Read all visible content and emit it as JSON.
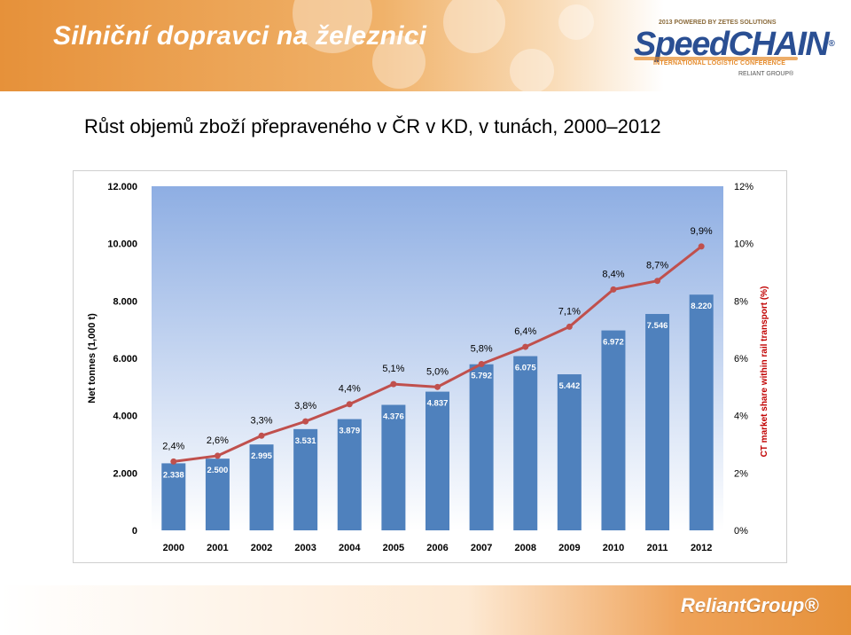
{
  "header": {
    "title": "Silniční dopravci na železnici",
    "logo_powered": "2013 POWERED BY ZETES SOLUTIONS",
    "logo_speed": "Speed",
    "logo_chain": "CHAIN",
    "logo_reg": "®",
    "logo_conference": "INTERNATIONAL LOGISTIC CONFERENCE",
    "logo_group": "RELIANT GROUP®"
  },
  "subtitle": "Růst objemů zboží přepraveného v ČR v KD, v tunách, 2000–2012",
  "footer": {
    "logo": "ReliantGroup®"
  },
  "colors": {
    "bar": "#4f81bd",
    "line": "#c0504d",
    "plot_top": "#8eaee3",
    "plot_bottom": "#ffffff",
    "header_orange": "#e6913a",
    "brand_blue": "#2a4f93"
  },
  "chart_data": {
    "type": "bar",
    "categories": [
      "2000",
      "2001",
      "2002",
      "2003",
      "2004",
      "2005",
      "2006",
      "2007",
      "2008",
      "2009",
      "2010",
      "2011",
      "2012"
    ],
    "series": [
      {
        "values": [
          2338,
          2500,
          2995,
          3531,
          3879,
          4376,
          4837,
          5792,
          6075,
          5442,
          6972,
          7546,
          8220
        ],
        "labels": [
          "2.338",
          "2.500",
          "2.995",
          "3.531",
          "3.879",
          "4.376",
          "4.837",
          "5.792",
          "6.075",
          "5.442",
          "6.972",
          "7.546",
          "8.220"
        ]
      },
      {
        "type": "line",
        "axis": "right",
        "values": [
          2.4,
          2.6,
          3.3,
          3.8,
          4.4,
          5.1,
          5.0,
          5.8,
          6.4,
          7.1,
          8.4,
          8.7,
          9.9
        ],
        "labels": [
          "2,4%",
          "2,6%",
          "3,3%",
          "3,8%",
          "4,4%",
          "5,1%",
          "5,0%",
          "5,8%",
          "6,4%",
          "7,1%",
          "8,4%",
          "8,7%",
          "9,9%"
        ]
      }
    ],
    "ylabel": "Net tonnes (1,000 t)",
    "ylabel_right": "CT market share within rail transport (%)",
    "ylim": [
      0,
      12000
    ],
    "ylim_right": [
      0,
      12
    ],
    "yticks": [
      "0",
      "2.000",
      "4.000",
      "6.000",
      "8.000",
      "10.000",
      "12.000"
    ],
    "yticks_right": [
      "0%",
      "2%",
      "4%",
      "6%",
      "8%",
      "10%",
      "12%"
    ],
    "grid": false,
    "legend": "none"
  }
}
